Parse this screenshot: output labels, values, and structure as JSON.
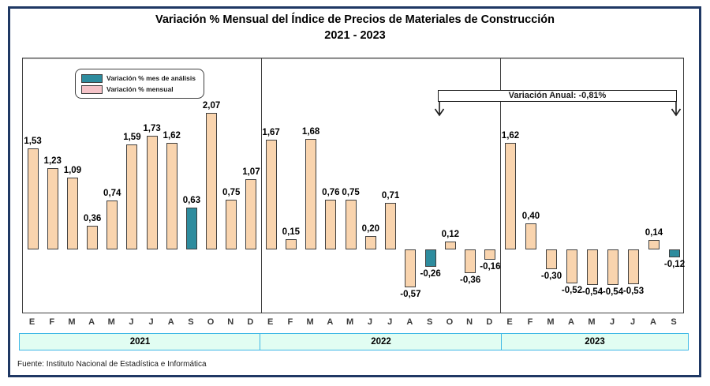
{
  "source": "Fuente: Instituto Nacional de Estadística e Informática",
  "colors": {
    "frame": "#1F3864",
    "chart_border": "#3f3f3f",
    "bar_monthly": "#F9D4AE",
    "bar_analysis": "#2E8C9E",
    "legend_monthly_swatch": "#F5C3C8",
    "baseline": "#C3C3C3",
    "band_fill": "#E1FDF2",
    "band_border": "#3FB8E6"
  },
  "chart_data": {
    "type": "bar",
    "title": "Variación % Mensual del Índice de Precios de Materiales de Construcción",
    "subtitle": "2021 - 2023",
    "xlabel": "",
    "ylabel": "",
    "ylim": [
      -1.0,
      2.9
    ],
    "grid": false,
    "zero_line": true,
    "legend_position": "top-left",
    "legend": [
      {
        "name": "Variación % mes de análisis",
        "color": "#2E8C9E"
      },
      {
        "name": "Variación % mensual",
        "color": "#F5C3C8"
      }
    ],
    "annotation": "Variación Anual: -0,81%",
    "value_label_format": "0,00 (comma decimal)",
    "groups": [
      {
        "year": "2021",
        "months": [
          "E",
          "F",
          "M",
          "A",
          "M",
          "J",
          "J",
          "A",
          "S",
          "O",
          "N",
          "D"
        ],
        "values": [
          1.53,
          1.23,
          1.09,
          0.36,
          0.74,
          1.59,
          1.73,
          1.62,
          0.63,
          2.07,
          0.75,
          1.07
        ],
        "analysis_month_index": 8
      },
      {
        "year": "2022",
        "months": [
          "E",
          "F",
          "M",
          "A",
          "M",
          "J",
          "J",
          "A",
          "S",
          "O",
          "N",
          "D"
        ],
        "values": [
          1.67,
          0.15,
          1.68,
          0.76,
          0.75,
          0.2,
          0.71,
          -0.57,
          -0.26,
          0.12,
          -0.36,
          -0.16
        ],
        "analysis_month_index": 8
      },
      {
        "year": "2023",
        "months": [
          "E",
          "F",
          "M",
          "A",
          "M",
          "J",
          "J",
          "A",
          "S"
        ],
        "values": [
          1.62,
          0.4,
          -0.3,
          -0.52,
          -0.54,
          -0.54,
          -0.53,
          0.14,
          -0.12
        ],
        "analysis_month_index": 8
      }
    ]
  }
}
